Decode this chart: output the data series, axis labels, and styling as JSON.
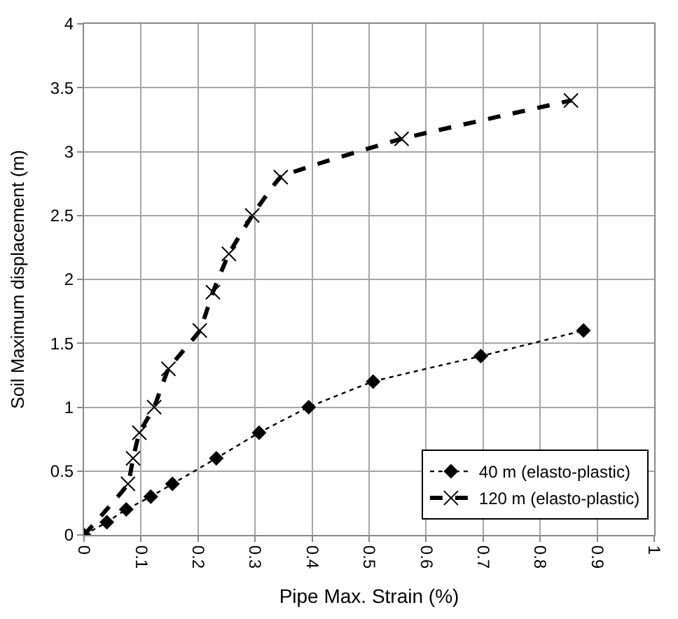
{
  "chart_data": {
    "type": "line",
    "xlabel": "Pipe Max. Strain (%)",
    "ylabel": "Soil Maximum displacement (m)",
    "xlim": [
      0,
      1
    ],
    "xticks": [
      0,
      0.1,
      0.2,
      0.3,
      0.4,
      0.5,
      0.6,
      0.7,
      0.8,
      0.9,
      1
    ],
    "ylim": [
      0,
      4
    ],
    "yticks": [
      0,
      0.5,
      1,
      1.5,
      2,
      2.5,
      3,
      3.5,
      4
    ],
    "grid": true,
    "legend": "bottom right",
    "series": [
      {
        "name": "40 m (elasto-plastic)",
        "color": "#000000",
        "marker": "diamond",
        "line_style": "dotted",
        "x": [
          0,
          0.04,
          0.074,
          0.117,
          0.155,
          0.232,
          0.307,
          0.394,
          0.507,
          0.696,
          0.876
        ],
        "values": [
          0,
          0.1,
          0.2,
          0.3,
          0.4,
          0.6,
          0.8,
          1.0,
          1.2,
          1.4,
          1.6
        ]
      },
      {
        "name": "120 m (elasto-plastic)",
        "color": "#000000",
        "marker": "cross",
        "line_style": "dashed",
        "x": [
          0,
          0.077,
          0.086,
          0.097,
          0.123,
          0.148,
          0.203,
          0.226,
          0.254,
          0.295,
          0.345,
          0.557,
          0.854
        ],
        "values": [
          0,
          0.4,
          0.6,
          0.8,
          1.0,
          1.3,
          1.6,
          1.9,
          2.2,
          2.5,
          2.8,
          3.1,
          3.4
        ]
      }
    ]
  }
}
